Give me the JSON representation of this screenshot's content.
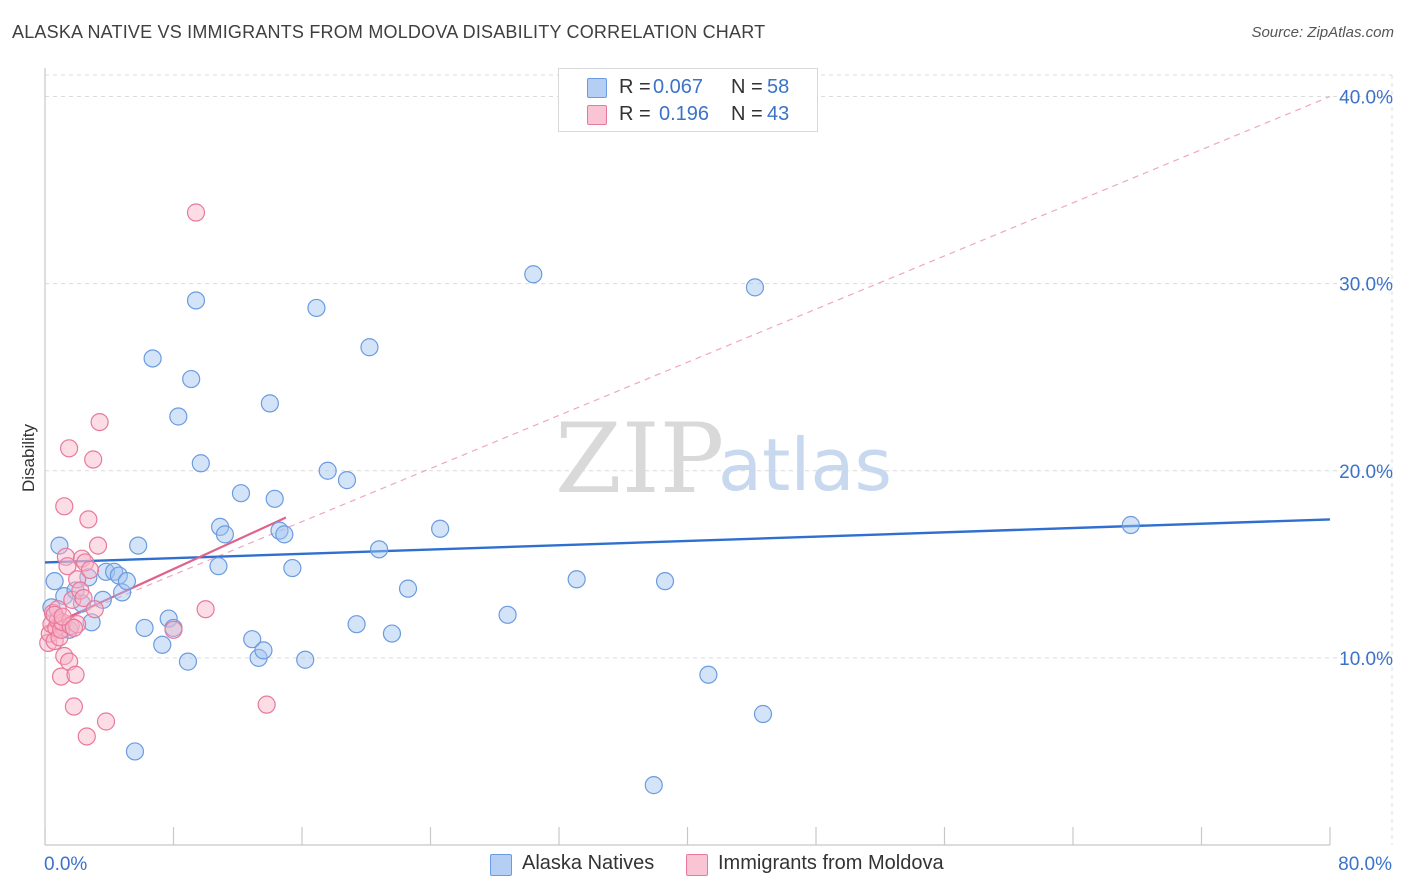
{
  "header": {
    "title": "ALASKA NATIVE VS IMMIGRANTS FROM MOLDOVA DISABILITY CORRELATION CHART",
    "source": "Source: ZipAtlas.com"
  },
  "legend": {
    "r_label": "R =",
    "n_label": "N =",
    "rows": [
      {
        "r": "0.067",
        "n": "58"
      },
      {
        "r": "0.196",
        "n": "43"
      }
    ]
  },
  "watermark": {
    "zip": "ZIP",
    "atlas": "atlas"
  },
  "chart_data": {
    "type": "scatter",
    "title": "ALASKA NATIVE VS IMMIGRANTS FROM MOLDOVA DISABILITY CORRELATION CHART",
    "xlabel": "",
    "ylabel": "Disability",
    "xlim": [
      0,
      80
    ],
    "ylim": [
      0,
      42
    ],
    "x_tick_labels": [
      "0.0%",
      "80.0%"
    ],
    "y_ticks": [
      10,
      20,
      30,
      40
    ],
    "y_tick_labels": [
      "10.0%",
      "20.0%",
      "30.0%",
      "40.0%"
    ],
    "grid": true,
    "legend_position": "top-center",
    "series": [
      {
        "name": "Alaska Natives",
        "color": "#6b9be0",
        "fill": "rgba(160,195,240,0.45)",
        "points": [
          [
            0.4,
            12.7
          ],
          [
            0.6,
            14.1
          ],
          [
            0.9,
            16.0
          ],
          [
            1.2,
            13.3
          ],
          [
            1.5,
            11.5
          ],
          [
            1.9,
            13.6
          ],
          [
            2.3,
            12.9
          ],
          [
            2.7,
            14.3
          ],
          [
            2.9,
            11.9
          ],
          [
            3.6,
            13.1
          ],
          [
            3.8,
            14.6
          ],
          [
            4.3,
            14.6
          ],
          [
            4.6,
            14.4
          ],
          [
            4.8,
            13.5
          ],
          [
            5.1,
            14.1
          ],
          [
            5.8,
            16.0
          ],
          [
            6.2,
            11.6
          ],
          [
            6.7,
            26.0
          ],
          [
            7.3,
            10.7
          ],
          [
            7.7,
            12.1
          ],
          [
            8.0,
            11.6
          ],
          [
            8.3,
            22.9
          ],
          [
            8.9,
            9.8
          ],
          [
            9.1,
            24.9
          ],
          [
            9.4,
            29.1
          ],
          [
            9.7,
            20.4
          ],
          [
            10.8,
            14.9
          ],
          [
            10.9,
            17.0
          ],
          [
            11.2,
            16.6
          ],
          [
            12.9,
            11.0
          ],
          [
            13.3,
            10.0
          ],
          [
            13.6,
            10.4
          ],
          [
            14.0,
            23.6
          ],
          [
            14.3,
            18.5
          ],
          [
            14.6,
            16.8
          ],
          [
            14.9,
            16.6
          ],
          [
            15.4,
            14.8
          ],
          [
            16.2,
            9.9
          ],
          [
            16.9,
            28.7
          ],
          [
            17.6,
            20.0
          ],
          [
            18.8,
            19.5
          ],
          [
            19.4,
            11.8
          ],
          [
            20.2,
            26.6
          ],
          [
            20.8,
            15.8
          ],
          [
            21.6,
            11.3
          ],
          [
            22.6,
            13.7
          ],
          [
            24.6,
            16.9
          ],
          [
            28.8,
            12.3
          ],
          [
            30.4,
            30.5
          ],
          [
            33.1,
            14.2
          ],
          [
            37.9,
            3.2
          ],
          [
            38.6,
            14.1
          ],
          [
            41.3,
            9.1
          ],
          [
            44.2,
            29.8
          ],
          [
            44.7,
            7.0
          ],
          [
            67.6,
            17.1
          ],
          [
            5.6,
            5.0
          ],
          [
            12.2,
            18.8
          ]
        ],
        "trend": {
          "x": [
            0,
            80
          ],
          "y": [
            15.1,
            17.4
          ]
        }
      },
      {
        "name": "Immigrants from Moldova",
        "color": "#e8799c",
        "fill": "rgba(248,180,200,0.45)",
        "points": [
          [
            0.2,
            10.8
          ],
          [
            0.3,
            11.3
          ],
          [
            0.4,
            11.8
          ],
          [
            0.5,
            12.4
          ],
          [
            0.6,
            10.9
          ],
          [
            0.7,
            11.6
          ],
          [
            0.8,
            12.0
          ],
          [
            0.8,
            12.6
          ],
          [
            0.9,
            11.1
          ],
          [
            1.0,
            9.0
          ],
          [
            1.0,
            11.5
          ],
          [
            1.1,
            11.9
          ],
          [
            1.2,
            10.1
          ],
          [
            1.2,
            18.1
          ],
          [
            1.3,
            15.4
          ],
          [
            1.4,
            14.9
          ],
          [
            1.5,
            9.8
          ],
          [
            1.5,
            21.2
          ],
          [
            1.6,
            11.7
          ],
          [
            1.7,
            13.1
          ],
          [
            1.8,
            7.4
          ],
          [
            1.9,
            9.1
          ],
          [
            2.0,
            11.8
          ],
          [
            2.0,
            14.2
          ],
          [
            2.2,
            13.6
          ],
          [
            2.3,
            15.3
          ],
          [
            2.4,
            13.2
          ],
          [
            2.5,
            15.1
          ],
          [
            2.6,
            5.8
          ],
          [
            2.7,
            17.4
          ],
          [
            2.8,
            14.7
          ],
          [
            3.0,
            20.6
          ],
          [
            3.1,
            12.6
          ],
          [
            3.3,
            16.0
          ],
          [
            3.4,
            22.6
          ],
          [
            3.8,
            6.6
          ],
          [
            8.0,
            11.5
          ],
          [
            9.4,
            33.8
          ],
          [
            10.0,
            12.6
          ],
          [
            13.8,
            7.5
          ],
          [
            0.6,
            12.3
          ],
          [
            1.1,
            12.2
          ],
          [
            1.8,
            11.6
          ]
        ],
        "trend": {
          "x": [
            0,
            15
          ],
          "y": [
            11.6,
            17.5
          ]
        },
        "trend_extended": {
          "x": [
            0,
            80
          ],
          "y": [
            11.6,
            40.0
          ]
        }
      }
    ]
  }
}
